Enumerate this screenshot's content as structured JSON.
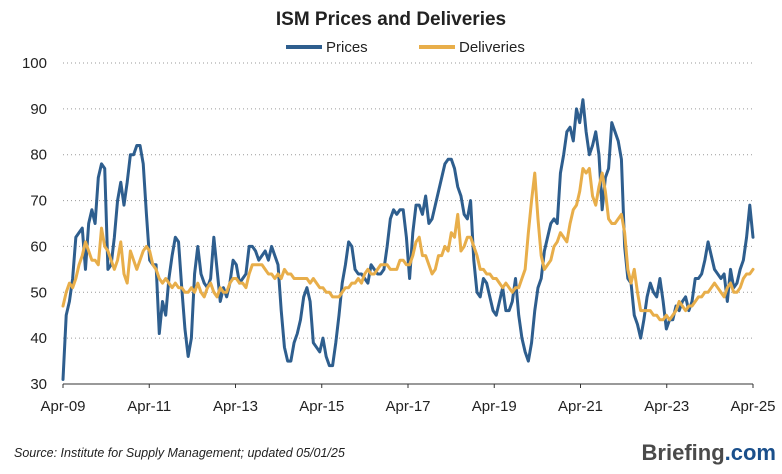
{
  "chart_data": {
    "type": "line",
    "title": "ISM Prices and Deliveries",
    "xlabel": "",
    "ylabel": "",
    "ylim": [
      30,
      100
    ],
    "yticks": [
      30,
      40,
      50,
      60,
      70,
      80,
      90,
      100
    ],
    "xticks": [
      "Apr-09",
      "Apr-11",
      "Apr-13",
      "Apr-15",
      "Apr-17",
      "Apr-19",
      "Apr-21",
      "Apr-23",
      "Apr-25"
    ],
    "x_start": "Apr-09",
    "x_end": "Apr-25",
    "grid": "horizontal dotted",
    "legend_position": "top-center",
    "series": [
      {
        "name": "Prices",
        "color": "#2e5e8e",
        "values": [
          31,
          45,
          48,
          53,
          62,
          63,
          64,
          55,
          65,
          68,
          65,
          75,
          78,
          77,
          55,
          56,
          62,
          70,
          74,
          69,
          74,
          80,
          80,
          82,
          82,
          78,
          67,
          57,
          56,
          56,
          41,
          48,
          45,
          53,
          58,
          62,
          61,
          51,
          42,
          36,
          40,
          54,
          60,
          54,
          52,
          51,
          53,
          62,
          55,
          48,
          51,
          49,
          52,
          57,
          56,
          52,
          53,
          54,
          60,
          60,
          59,
          57,
          58,
          59,
          57,
          60,
          58,
          56,
          46,
          38,
          35,
          35,
          39,
          41,
          44,
          49,
          51,
          48,
          39,
          38,
          37,
          40,
          36,
          34,
          34,
          39,
          45,
          52,
          56,
          61,
          60,
          55,
          54,
          54,
          53,
          52,
          56,
          55,
          54,
          54,
          55,
          60,
          66,
          68,
          67,
          68,
          68,
          62,
          53,
          63,
          69,
          69,
          67,
          71,
          65,
          66,
          69,
          72,
          75,
          78,
          79,
          79,
          77,
          73,
          71,
          67,
          66,
          70,
          57,
          50,
          49,
          53,
          52,
          49,
          46,
          45,
          48,
          51,
          46,
          46,
          48,
          53,
          45,
          40,
          37,
          35,
          39,
          46,
          51,
          53,
          59,
          62,
          65,
          66,
          65,
          76,
          80,
          85,
          86,
          83,
          90,
          87,
          92,
          85,
          80,
          82,
          85,
          80,
          68,
          75,
          77,
          87,
          85,
          83,
          79,
          60,
          53,
          52,
          45,
          43,
          40,
          44,
          49,
          52,
          50,
          49,
          53,
          48,
          42,
          44,
          44,
          47,
          46,
          48,
          49,
          46,
          48,
          53,
          53,
          54,
          57,
          61,
          58,
          55,
          54,
          53,
          54,
          48,
          55,
          51,
          52,
          55,
          57,
          62,
          69,
          62
        ],
        "peak": 92,
        "trough": 31
      },
      {
        "name": "Deliveries",
        "color": "#e8ae4a",
        "values": [
          47,
          50,
          52,
          51,
          53,
          56,
          58,
          61,
          59,
          57,
          57,
          56,
          64,
          60,
          59,
          57,
          55,
          57,
          61,
          54,
          52,
          59,
          57,
          55,
          57,
          59,
          60,
          59,
          56,
          55,
          53,
          52,
          53,
          52,
          51,
          52,
          51,
          51,
          50,
          50,
          51,
          50,
          52,
          50,
          49,
          51,
          52,
          50,
          49,
          51,
          50,
          50,
          52,
          53,
          53,
          52,
          52,
          51,
          54,
          56,
          56,
          56,
          56,
          55,
          54,
          54,
          53,
          54,
          53,
          55,
          54,
          54,
          53,
          53,
          53,
          53,
          53,
          52,
          53,
          52,
          51,
          51,
          50,
          50,
          49,
          49,
          49,
          50,
          51,
          51,
          52,
          52,
          53,
          52,
          54,
          55,
          54,
          54,
          55,
          56,
          56,
          56,
          55,
          55,
          55,
          57,
          57,
          56,
          56,
          58,
          61,
          62,
          58,
          58,
          56,
          54,
          55,
          58,
          58,
          60,
          59,
          63,
          62,
          67,
          59,
          60,
          62,
          62,
          60,
          58,
          55,
          55,
          54,
          54,
          53,
          53,
          52,
          51,
          52,
          51,
          50,
          51,
          51,
          53,
          55,
          63,
          70,
          76,
          66,
          58,
          55,
          56,
          57,
          60,
          61,
          63,
          62,
          61,
          65,
          68,
          69,
          72,
          77,
          76,
          77,
          71,
          69,
          73,
          76,
          72,
          66,
          65,
          65,
          66,
          67,
          63,
          55,
          52,
          55,
          50,
          46,
          46,
          46,
          46,
          45,
          45,
          44,
          44,
          45,
          44,
          45,
          46,
          48,
          47,
          46,
          47,
          47,
          48,
          49,
          49,
          50,
          50,
          51,
          52,
          51,
          50,
          49,
          51,
          52,
          50,
          50,
          51,
          53,
          54,
          54,
          55
        ]
      }
    ]
  },
  "source_note": "Source: Institute for Supply Management; updated 05/01/25",
  "brand": {
    "name": "Briefing",
    "suffix": ".com"
  }
}
